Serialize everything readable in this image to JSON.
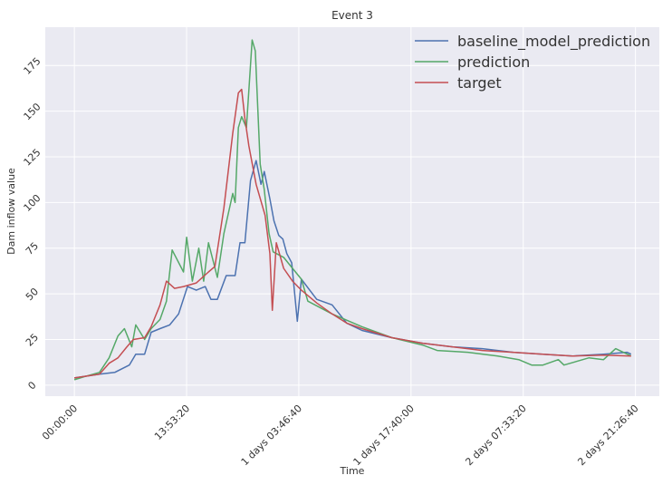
{
  "chart_data": {
    "type": "line",
    "title": "Event 3",
    "xlabel": "Time",
    "ylabel": "Dam inflow value",
    "x_unit": "hours",
    "xlim": [
      -3.6,
      72.4
    ],
    "ylim": [
      -6,
      196
    ],
    "grid": true,
    "legend_position": "top-right",
    "x_ticks": [
      {
        "value": 0,
        "label": "00:00:00"
      },
      {
        "value": 13.889,
        "label": "13:53:20"
      },
      {
        "value": 27.778,
        "label": "1 days 03:46:40"
      },
      {
        "value": 41.667,
        "label": "1 days 17:40:00"
      },
      {
        "value": 55.556,
        "label": "2 days 07:33:20"
      },
      {
        "value": 69.444,
        "label": "2 days 21:26:40"
      }
    ],
    "y_ticks": [
      {
        "value": 0,
        "label": "0"
      },
      {
        "value": 25,
        "label": "25"
      },
      {
        "value": 50,
        "label": "50"
      },
      {
        "value": 75,
        "label": "75"
      },
      {
        "value": 100,
        "label": "100"
      },
      {
        "value": 125,
        "label": "125"
      },
      {
        "value": 150,
        "label": "150"
      },
      {
        "value": 175,
        "label": "175"
      }
    ],
    "series": [
      {
        "name": "baseline_model_prediction",
        "color": "#4c72b0",
        "x": [
          0,
          3.1,
          5.0,
          6.8,
          7.6,
          8.7,
          9.5,
          10.6,
          11.8,
          12.9,
          14.0,
          15.1,
          16.2,
          16.9,
          17.7,
          18.8,
          19.9,
          20.5,
          21.1,
          21.8,
          22.5,
          23.1,
          23.5,
          24.2,
          24.7,
          25.3,
          25.8,
          26.3,
          26.9,
          27.6,
          28.1,
          30.0,
          31.9,
          33.7,
          35.6,
          39.3,
          43.1,
          46.8,
          50.5,
          54.3,
          58.0,
          61.7,
          65.5,
          68.4,
          68.9
        ],
        "y": [
          4,
          6,
          7,
          11,
          17,
          17,
          29,
          31,
          33,
          39,
          54,
          52,
          54,
          47,
          47,
          60,
          60,
          78,
          78,
          112,
          123,
          110,
          117,
          102,
          90,
          82,
          80,
          72,
          67,
          35,
          58,
          47,
          44,
          34,
          30,
          26,
          23,
          21,
          20,
          18,
          17,
          16,
          17,
          18,
          17
        ]
      },
      {
        "name": "prediction",
        "color": "#55a868",
        "x": [
          0,
          1.5,
          3.1,
          4.3,
          5.4,
          6.2,
          7.1,
          7.6,
          8.7,
          9.5,
          10.6,
          11.4,
          12.1,
          13.5,
          13.9,
          14.6,
          15.4,
          16.0,
          16.6,
          17.7,
          18.5,
          19.6,
          19.9,
          20.3,
          20.7,
          21.3,
          22.0,
          22.4,
          23.0,
          23.5,
          24.1,
          24.6,
          25.9,
          27.0,
          28.1,
          28.9,
          31.9,
          35.6,
          39.3,
          43.1,
          44.9,
          48.7,
          52.4,
          55.0,
          56.6,
          58.0,
          59.9,
          60.6,
          63.7,
          65.5,
          67.0,
          68.9
        ],
        "y": [
          3,
          5,
          7,
          15,
          27,
          31,
          21,
          33,
          25,
          31,
          36,
          46,
          74,
          62,
          81,
          57,
          75,
          57,
          78,
          59,
          83,
          105,
          100,
          141,
          147,
          141,
          189,
          183,
          121,
          107,
          83,
          73,
          70,
          64,
          58,
          46,
          39,
          32,
          26,
          22,
          19,
          18,
          16,
          14,
          11,
          11,
          14,
          11,
          15,
          14,
          20,
          16
        ]
      },
      {
        "name": "target",
        "color": "#c44e52",
        "x": [
          0,
          3.1,
          4.3,
          5.4,
          6.5,
          7.3,
          8.7,
          9.5,
          10.6,
          11.4,
          12.4,
          13.5,
          15.1,
          16.6,
          17.4,
          18.5,
          19.6,
          20.3,
          20.7,
          21.1,
          21.6,
          22.5,
          23.6,
          24.2,
          24.5,
          25.0,
          25.9,
          27.0,
          28.1,
          30.0,
          31.9,
          33.7,
          35.6,
          39.3,
          43.1,
          46.8,
          50.5,
          54.3,
          58.0,
          61.7,
          65.5,
          68.9
        ],
        "y": [
          4,
          6,
          12,
          15,
          21,
          25,
          26,
          32,
          44,
          57,
          53,
          54,
          56,
          62,
          65,
          97,
          138,
          160,
          162,
          146,
          131,
          110,
          93,
          72,
          41,
          78,
          64,
          57,
          52,
          45,
          39,
          34,
          31,
          26,
          23,
          21,
          19,
          18,
          17,
          16,
          16.5,
          16
        ]
      }
    ]
  }
}
